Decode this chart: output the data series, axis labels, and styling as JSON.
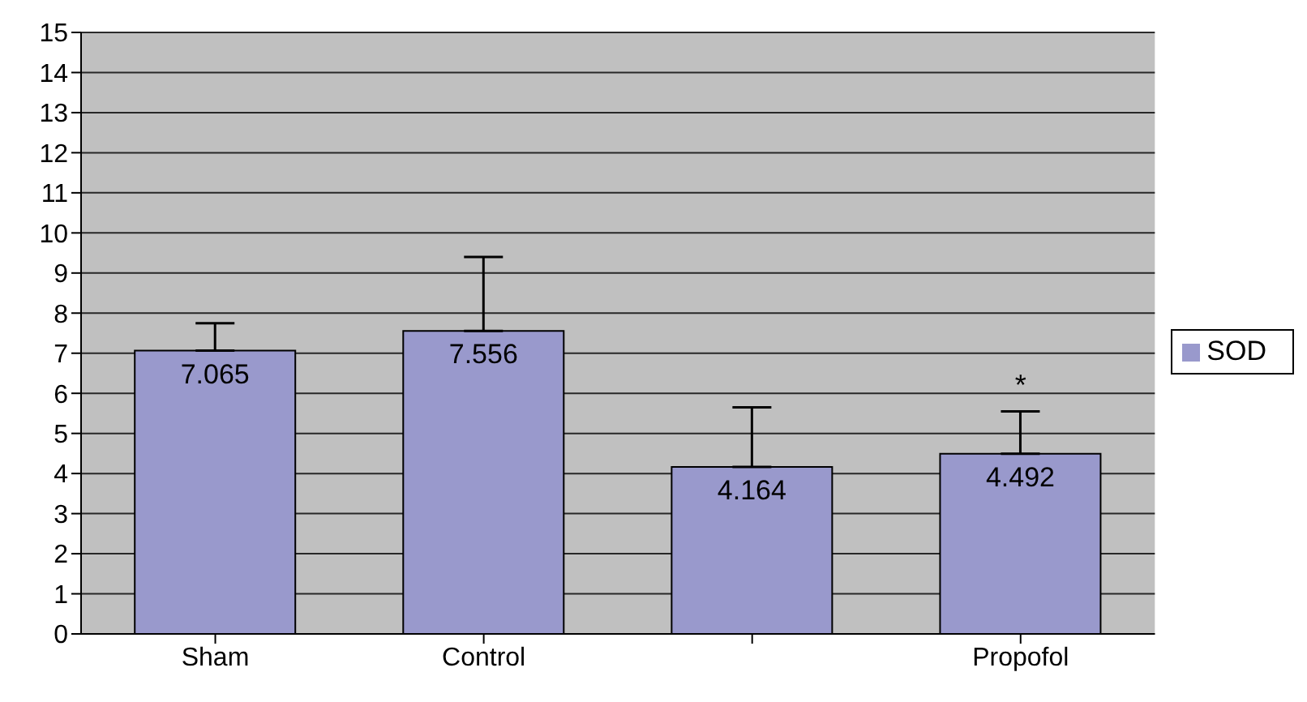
{
  "chart_data": {
    "type": "bar",
    "categories": [
      "Sham",
      "Control",
      null,
      "Propofol"
    ],
    "series": [
      {
        "name": "SOD",
        "color": "#9999cc",
        "values": [
          7.065,
          7.556,
          4.164,
          4.492
        ],
        "errors": [
          [
            7.065,
            7.75
          ],
          [
            7.556,
            9.4
          ],
          [
            4.164,
            5.65
          ],
          [
            4.492,
            5.55
          ]
        ]
      }
    ],
    "data_labels": true,
    "ylim": [
      0,
      15
    ],
    "yticks": [
      0,
      1,
      2,
      3,
      4,
      5,
      6,
      7,
      8,
      9,
      10,
      11,
      12,
      13,
      14,
      15
    ],
    "grid": "y",
    "legend": "right",
    "annotations": [
      "*"
    ]
  }
}
